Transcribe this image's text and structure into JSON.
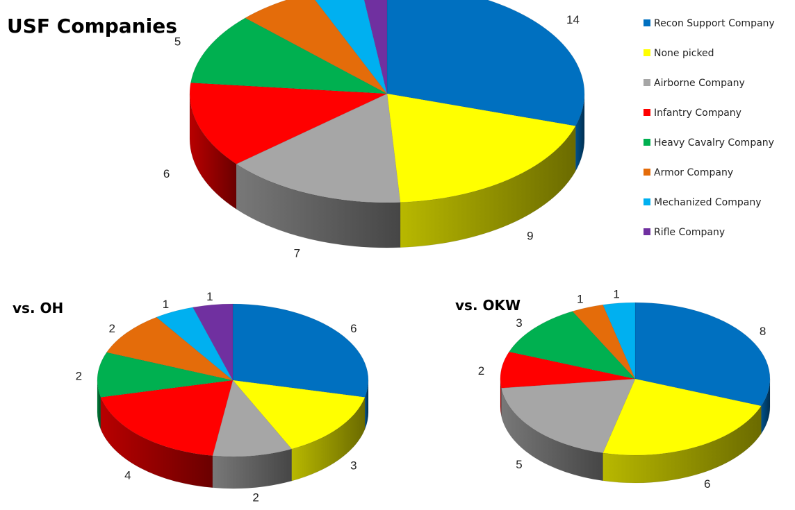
{
  "chart_data": [
    {
      "type": "pie",
      "style": "3d",
      "title": "USF Companies",
      "categories": [
        "Recon Support Company",
        "None picked",
        "Airborne Company",
        "Infantry Company",
        "Heavy Cavalry Company",
        "Armor Company",
        "Mechanized Company",
        "Rifle Company"
      ],
      "values": [
        14,
        9,
        7,
        6,
        5,
        3,
        2,
        1
      ],
      "legend_position": "right"
    },
    {
      "type": "pie",
      "style": "3d",
      "title": "vs. OH",
      "categories": [
        "Recon Support Company",
        "None picked",
        "Airborne Company",
        "Infantry Company",
        "Heavy Cavalry Company",
        "Armor Company",
        "Mechanized Company",
        "Rifle Company"
      ],
      "values": [
        6,
        3,
        2,
        4,
        2,
        2,
        1,
        1
      ]
    },
    {
      "type": "pie",
      "style": "3d",
      "title": "vs. OKW",
      "categories": [
        "Recon Support Company",
        "None picked",
        "Airborne Company",
        "Infantry Company",
        "Heavy Cavalry Company",
        "Armor Company",
        "Mechanized Company"
      ],
      "values": [
        8,
        6,
        5,
        2,
        3,
        1,
        1
      ]
    }
  ],
  "legend": {
    "items": [
      {
        "label": "Recon Support Company",
        "color": "#0070C0"
      },
      {
        "label": "None picked",
        "color": "#FFFF00"
      },
      {
        "label": "Airborne Company",
        "color": "#A6A6A6"
      },
      {
        "label": "Infantry Company",
        "color": "#FF0000"
      },
      {
        "label": "Heavy Cavalry Company",
        "color": "#00B050"
      },
      {
        "label": "Armor Company",
        "color": "#E46C0A"
      },
      {
        "label": "Mechanized Company",
        "color": "#00B0F0"
      },
      {
        "label": "Rifle Company",
        "color": "#7030A0"
      }
    ]
  }
}
